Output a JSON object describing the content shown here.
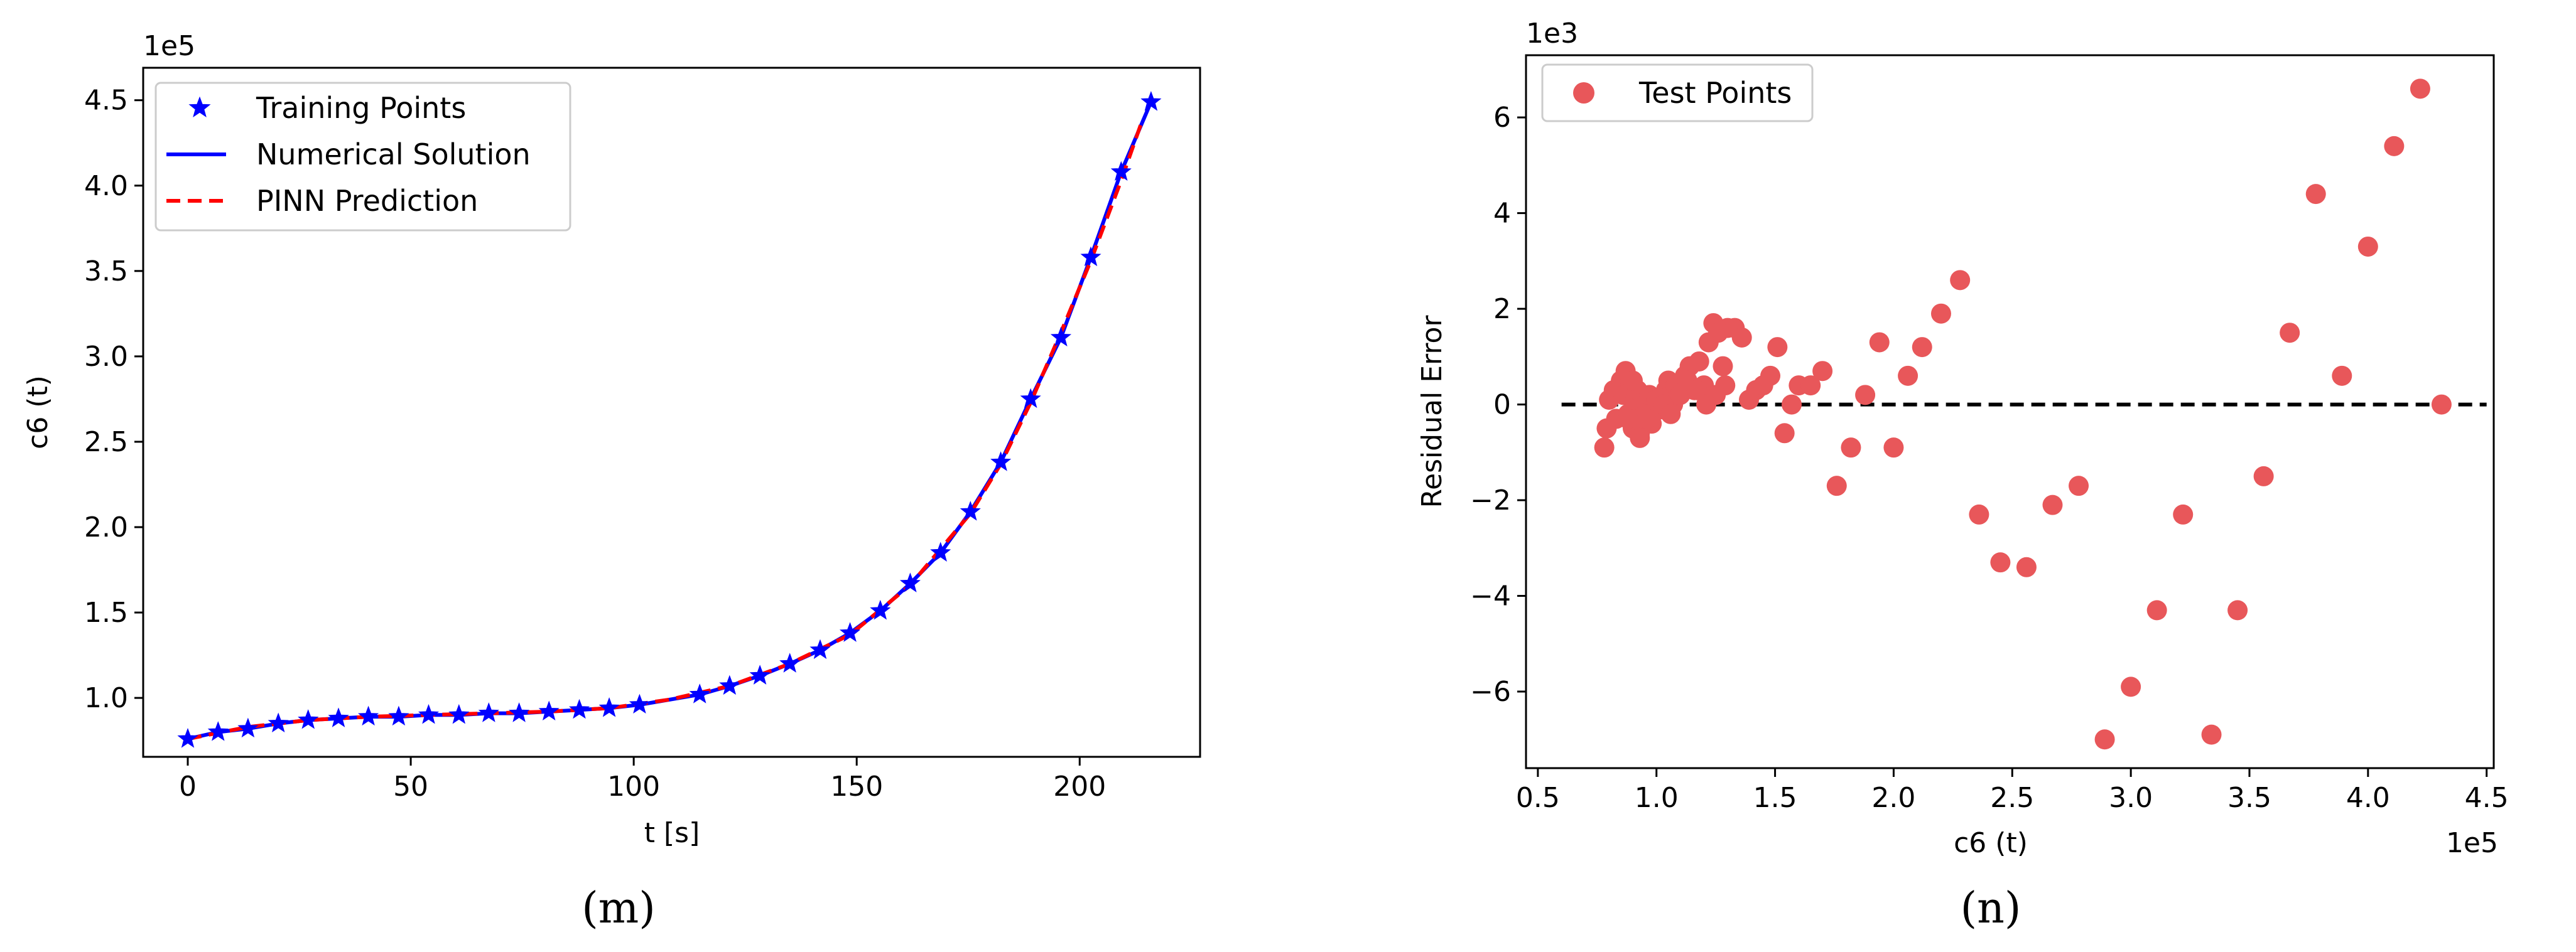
{
  "chart_data": [
    {
      "type": "line",
      "panel_label": "(m)",
      "xlabel": "t [s]",
      "ylabel": "c6 (t)",
      "y_offset_text": "1e5",
      "xlim": [
        -10,
        227
      ],
      "ylim": [
        0.655,
        4.69
      ],
      "xticks": [
        0,
        50,
        100,
        150,
        200
      ],
      "xtick_labels": [
        "0",
        "50",
        "100",
        "150",
        "200"
      ],
      "yticks": [
        1.0,
        1.5,
        2.0,
        2.5,
        3.0,
        3.5,
        4.0,
        4.5
      ],
      "ytick_labels": [
        "1.0",
        "1.5",
        "2.0",
        "2.5",
        "3.0",
        "3.5",
        "4.0",
        "4.5"
      ],
      "legend_position": "upper-left",
      "series": [
        {
          "name": "Training Points",
          "style": "markers",
          "marker": "star",
          "color": "#0000ff",
          "x": [
            0,
            6.8,
            13.5,
            20.3,
            27.0,
            33.8,
            40.5,
            47.3,
            54.0,
            60.8,
            67.5,
            74.3,
            81.0,
            87.8,
            94.5,
            101.3,
            114.8,
            121.5,
            128.3,
            135.0,
            141.8,
            148.5,
            155.3,
            162.0,
            168.8,
            175.5,
            182.3,
            189.0,
            195.8,
            202.5,
            209.3,
            216.0
          ],
          "y": [
            0.76,
            0.8,
            0.82,
            0.85,
            0.87,
            0.88,
            0.89,
            0.89,
            0.9,
            0.9,
            0.91,
            0.91,
            0.92,
            0.93,
            0.94,
            0.96,
            1.02,
            1.07,
            1.13,
            1.2,
            1.28,
            1.38,
            1.51,
            1.67,
            1.85,
            2.09,
            2.38,
            2.75,
            3.11,
            3.58,
            4.08,
            4.49
          ]
        },
        {
          "name": "Numerical Solution",
          "style": "solid",
          "color": "#0000ff",
          "x": [
            0,
            6.8,
            13.5,
            20.3,
            27.0,
            33.8,
            40.5,
            47.3,
            54.0,
            60.8,
            67.5,
            74.3,
            81.0,
            87.8,
            94.5,
            101.3,
            114.8,
            121.5,
            128.3,
            135.0,
            141.8,
            148.5,
            155.3,
            162.0,
            168.8,
            175.5,
            182.3,
            189.0,
            195.8,
            202.5,
            209.3,
            216.0
          ],
          "y": [
            0.76,
            0.8,
            0.82,
            0.85,
            0.87,
            0.88,
            0.89,
            0.89,
            0.9,
            0.9,
            0.91,
            0.91,
            0.92,
            0.93,
            0.94,
            0.96,
            1.02,
            1.07,
            1.13,
            1.2,
            1.28,
            1.38,
            1.51,
            1.67,
            1.85,
            2.09,
            2.38,
            2.75,
            3.11,
            3.58,
            4.08,
            4.49
          ]
        },
        {
          "name": "PINN Prediction",
          "style": "dashed",
          "color": "#ff0000",
          "x": [
            0,
            13.5,
            27.0,
            40.5,
            54.0,
            67.5,
            81.0,
            94.5,
            108.0,
            121.5,
            135.0,
            148.5,
            162.0,
            175.5,
            182.3,
            189.0,
            195.8,
            202.5,
            209.3,
            214.0
          ],
          "y": [
            0.76,
            0.83,
            0.87,
            0.89,
            0.9,
            0.91,
            0.92,
            0.94,
            0.99,
            1.07,
            1.2,
            1.37,
            1.66,
            2.08,
            2.37,
            2.73,
            3.14,
            3.56,
            4.03,
            4.38
          ]
        }
      ]
    },
    {
      "type": "scatter",
      "panel_label": "(n)",
      "xlabel": "c6 (t)",
      "ylabel": "Residual Error",
      "x_offset_text": "1e5",
      "y_offset_text": "1e3",
      "xlim": [
        0.45,
        4.53
      ],
      "ylim": [
        -7.6,
        7.3
      ],
      "xticks": [
        0.5,
        1.0,
        1.5,
        2.0,
        2.5,
        3.0,
        3.5,
        4.0,
        4.5
      ],
      "xtick_labels": [
        "0.5",
        "1.0",
        "1.5",
        "2.0",
        "2.5",
        "3.0",
        "3.5",
        "4.0",
        "4.5"
      ],
      "yticks": [
        -6,
        -4,
        -2,
        0,
        2,
        4,
        6
      ],
      "ytick_labels": [
        "−6",
        "−4",
        "−2",
        "0",
        "2",
        "4",
        "6"
      ],
      "legend_position": "upper-left",
      "reference_line": {
        "y": 0,
        "x_range": [
          0.6,
          4.5
        ],
        "style": "dashed",
        "color": "#000000"
      },
      "series": [
        {
          "name": "Test Points",
          "color": "#e8575a",
          "x": [
            0.78,
            0.79,
            0.8,
            0.82,
            0.83,
            0.85,
            0.86,
            0.87,
            0.88,
            0.89,
            0.9,
            0.91,
            0.92,
            0.93,
            0.95,
            0.96,
            0.97,
            0.98,
            1.0,
            1.02,
            1.04,
            1.05,
            1.07,
            1.08,
            1.1,
            1.12,
            1.14,
            1.16,
            1.18,
            1.2,
            1.22,
            1.24,
            1.26,
            1.28,
            1.3,
            1.33,
            1.36,
            1.39,
            1.42,
            1.45,
            1.48,
            1.51,
            1.54,
            1.57,
            1.6,
            1.65,
            1.7,
            1.76,
            1.82,
            1.88,
            1.94,
            2.0,
            2.06,
            2.12,
            2.2,
            2.28,
            2.36,
            2.45,
            2.56,
            2.67,
            2.78,
            2.89,
            3.0,
            3.11,
            3.22,
            3.34,
            3.45,
            3.56,
            3.67,
            3.78,
            3.89,
            4.0,
            4.11,
            4.22,
            4.31,
            0.88,
            0.9,
            0.93,
            0.96,
            1.0,
            1.03,
            1.06,
            1.1,
            1.13,
            1.17,
            1.21,
            1.25,
            1.29
          ],
          "y": [
            -0.9,
            -0.5,
            0.1,
            0.3,
            -0.3,
            0.5,
            0.2,
            0.7,
            -0.2,
            0.4,
            -0.5,
            0.1,
            0.3,
            -0.6,
            -0.2,
            0.0,
            0.2,
            -0.4,
            0.1,
            -0.1,
            0.3,
            0.5,
            0.0,
            0.4,
            0.2,
            0.6,
            0.8,
            0.3,
            0.9,
            0.4,
            1.3,
            1.7,
            1.5,
            0.8,
            1.6,
            1.6,
            1.4,
            0.1,
            0.3,
            0.4,
            0.6,
            1.2,
            -0.6,
            0.0,
            0.4,
            0.4,
            0.7,
            -1.7,
            -0.9,
            0.2,
            1.3,
            -0.9,
            0.6,
            1.2,
            1.9,
            2.6,
            -2.3,
            -3.3,
            -3.4,
            -2.1,
            -1.7,
            -7.0,
            -5.9,
            -4.3,
            -2.3,
            -6.9,
            -4.3,
            -1.5,
            1.5,
            4.4,
            0.6,
            3.3,
            5.4,
            6.6,
            0.0,
            -0.3,
            0.5,
            -0.7,
            -0.3,
            0.1,
            0.0,
            -0.2,
            0.2,
            0.5,
            0.3,
            0.0,
            0.2,
            0.4
          ]
        }
      ]
    }
  ]
}
